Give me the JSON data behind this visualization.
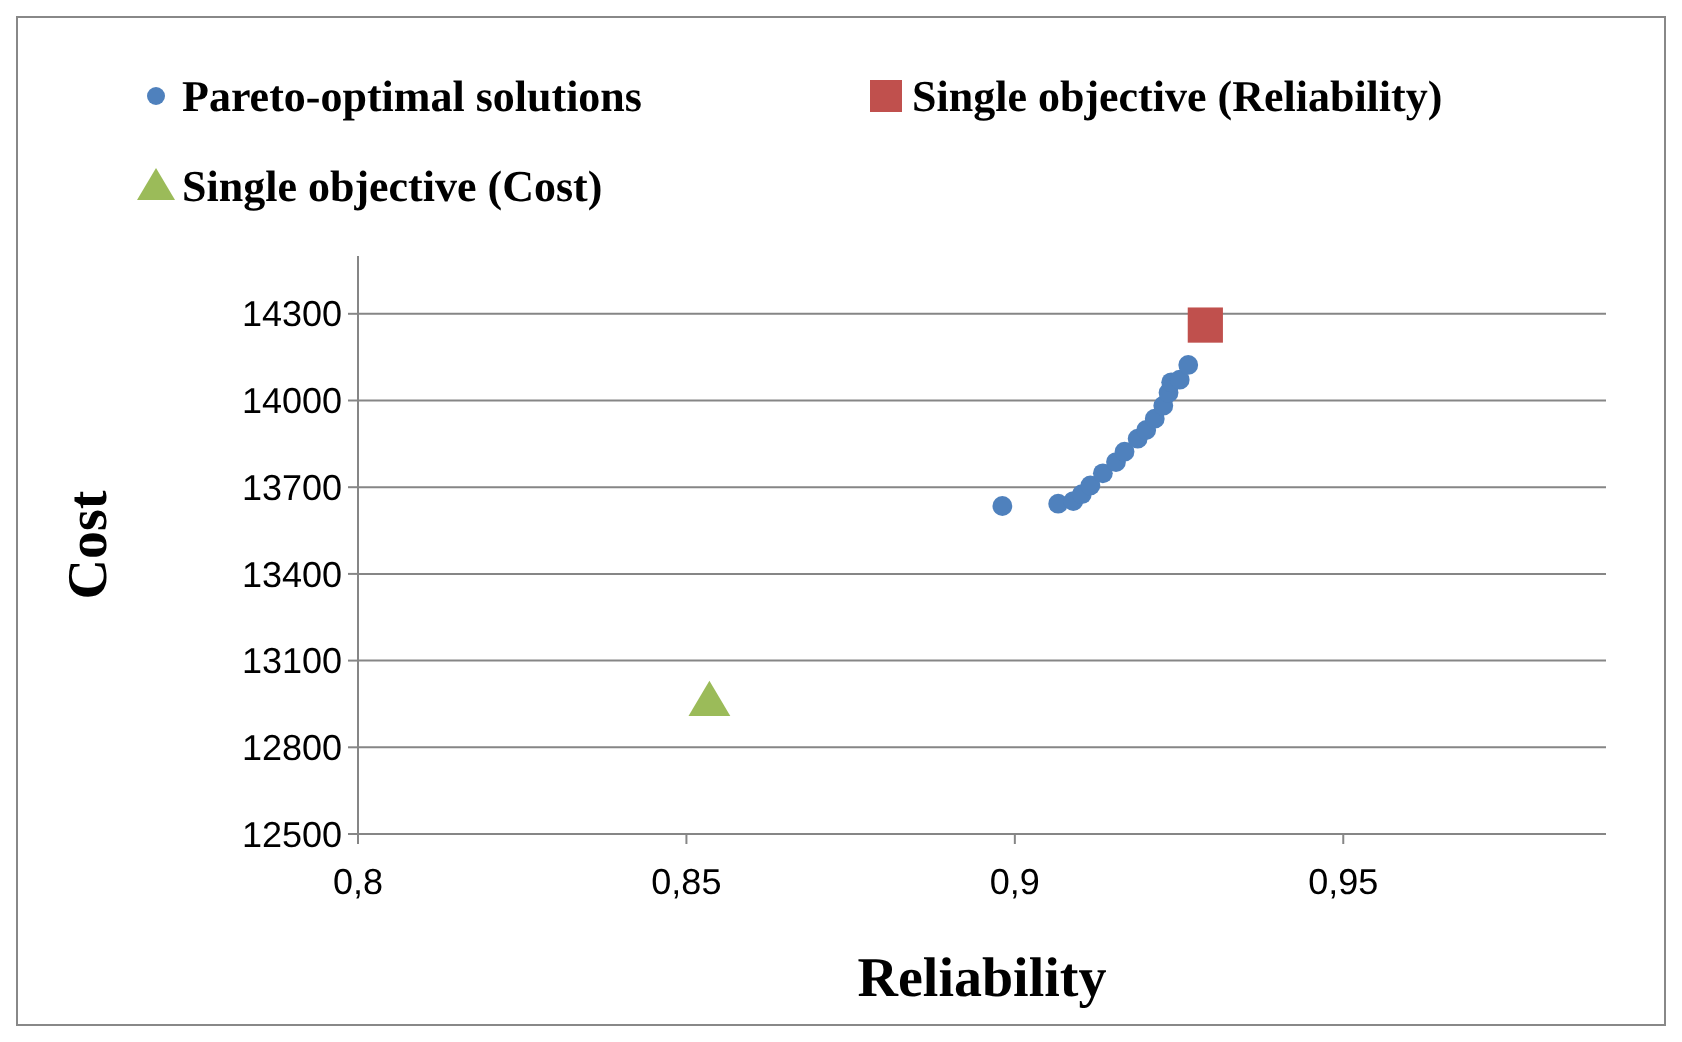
{
  "chart_data": {
    "type": "scatter",
    "xlabel": "Reliability",
    "ylabel": "Cost",
    "xlim": [
      0.8,
      0.99
    ],
    "xticks": [
      {
        "value": 0.8,
        "label": "0,8"
      },
      {
        "value": 0.85,
        "label": "0,85"
      },
      {
        "value": 0.9,
        "label": "0,9"
      },
      {
        "value": 0.95,
        "label": "0,95"
      }
    ],
    "ylim": [
      12500,
      14500
    ],
    "yticks": [
      12500,
      12800,
      13100,
      13400,
      13700,
      14000,
      14300
    ],
    "grid": "y",
    "legend": "top",
    "series": [
      {
        "name": "Pareto-optimal solutions",
        "color": "#4f81bd",
        "marker": "circle",
        "x": [
          0.8981,
          0.9066,
          0.9089,
          0.9102,
          0.9115,
          0.9134,
          0.9154,
          0.9167,
          0.9187,
          0.92,
          0.9213,
          0.9226,
          0.9234,
          0.9238,
          0.9251,
          0.9264
        ],
        "values": [
          13635,
          13643,
          13652,
          13676,
          13706,
          13748,
          13787,
          13823,
          13868,
          13898,
          13937,
          13982,
          14027,
          14063,
          14072,
          14123
        ]
      },
      {
        "name": "Single objective (Reliability)",
        "color": "#c0504d",
        "marker": "square",
        "x": [
          0.929
        ],
        "values": [
          14261
        ]
      },
      {
        "name": "Single objective (Cost)",
        "color": "#9bbb59",
        "marker": "triangle",
        "x": [
          0.8535
        ],
        "values": [
          12962
        ]
      }
    ]
  }
}
